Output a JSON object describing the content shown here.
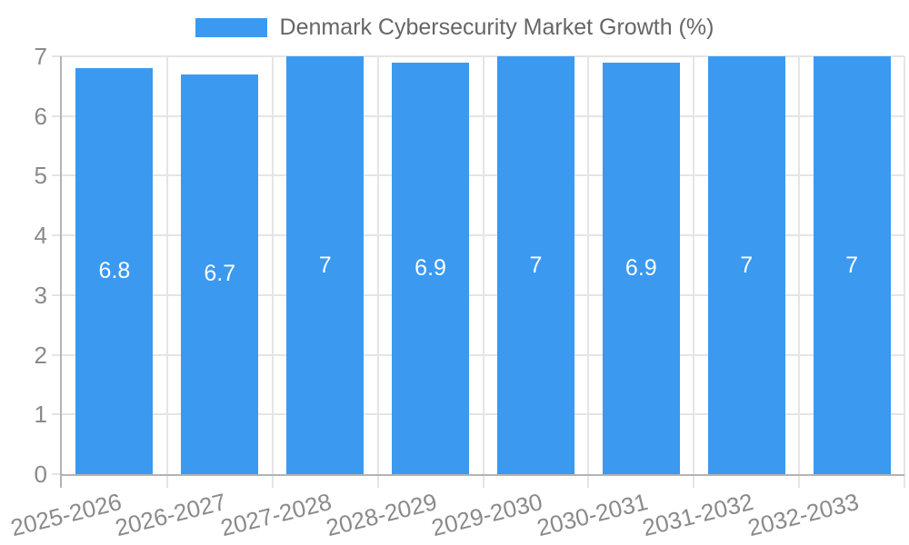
{
  "chart_data": {
    "type": "bar",
    "title": "Denmark Cybersecurity Market Growth (%)",
    "categories": [
      "2025-2026",
      "2026-2027",
      "2027-2028",
      "2028-2029",
      "2029-2030",
      "2030-2031",
      "2031-2032",
      "2032-2033"
    ],
    "values": [
      6.8,
      6.7,
      7,
      6.9,
      7,
      6.9,
      7,
      7
    ],
    "xlabel": "",
    "ylabel": "",
    "ylim": [
      0,
      7
    ],
    "yticks": [
      0,
      1,
      2,
      3,
      4,
      5,
      6,
      7
    ],
    "grid": true,
    "legend_position": "top",
    "legend_entries": [
      "Denmark Cybersecurity Market Growth (%)"
    ],
    "colors": {
      "bar": "#3b99f0",
      "grid": "#e5e5e5",
      "axis": "#b3b3b3",
      "tick_text": "#8a8a8a",
      "legend_text": "#666666",
      "bar_label": "#ffffff",
      "background": "#ffffff"
    }
  }
}
